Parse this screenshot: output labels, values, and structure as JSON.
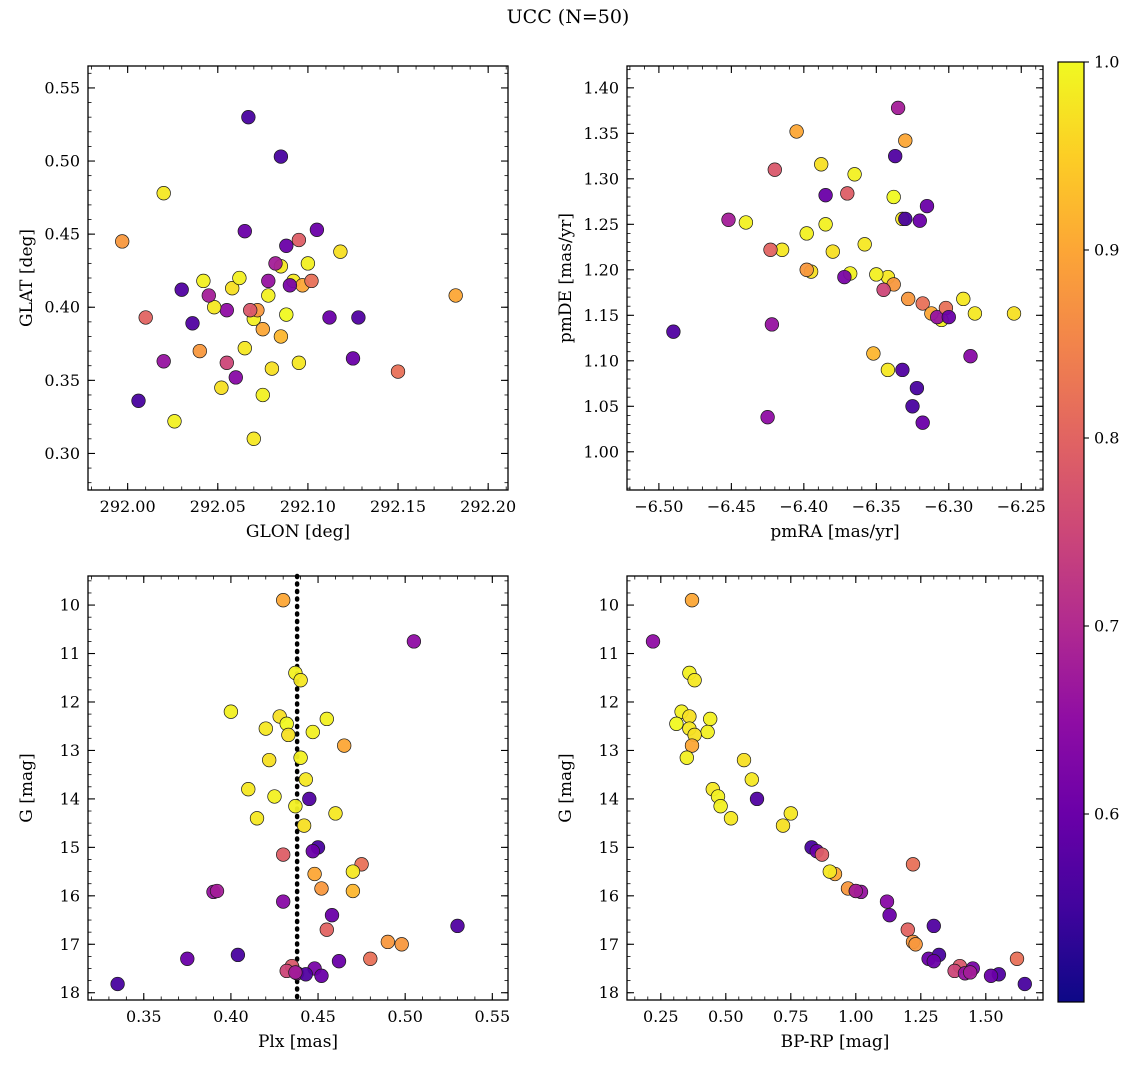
{
  "title": "UCC (N=50)",
  "colorbar": {
    "colormap": "plasma",
    "vmin": 0.5,
    "vmax": 1.0,
    "tick_values": [
      0.6,
      0.7,
      0.8,
      0.9,
      1.0
    ],
    "tick_labels": [
      "0.6",
      "0.7",
      "0.8",
      "0.9",
      "1.0"
    ]
  },
  "colormap_plasma_stops": [
    "#0d0887",
    "#41049d",
    "#6a00a8",
    "#8f0da4",
    "#b12a90",
    "#cc4778",
    "#e16462",
    "#f2844b",
    "#fca636",
    "#fcce25",
    "#f0f921"
  ],
  "chart_data": {
    "type": "scatter",
    "n_stars": 50,
    "legend": "none",
    "grid": false,
    "star_fields": [
      "glon",
      "glat",
      "pmra",
      "pmde",
      "plx",
      "g_mag",
      "bp_rp",
      "prob"
    ],
    "stars": [
      [
        292.075,
        0.385,
        -6.405,
        1.352,
        0.43,
        9.9,
        0.37,
        0.9
      ],
      [
        292.055,
        0.398,
        -6.425,
        1.038,
        0.505,
        10.75,
        0.22,
        0.65
      ],
      [
        292.078,
        0.408,
        -6.385,
        1.25,
        0.437,
        11.4,
        0.36,
        0.99
      ],
      [
        292.092,
        0.418,
        -6.358,
        1.228,
        0.44,
        11.55,
        0.38,
        0.98
      ],
      [
        292.042,
        0.418,
        -6.44,
        1.252,
        0.4,
        12.2,
        0.33,
        0.99
      ],
      [
        292.058,
        0.413,
        -6.395,
        1.198,
        0.428,
        12.3,
        0.36,
        0.97
      ],
      [
        292.07,
        0.392,
        -6.365,
        1.305,
        0.455,
        12.35,
        0.44,
        0.99
      ],
      [
        292.088,
        0.395,
        -6.338,
        1.28,
        0.432,
        12.45,
        0.31,
        1.0
      ],
      [
        292.065,
        0.372,
        -6.342,
        1.192,
        0.42,
        12.55,
        0.36,
        0.98
      ],
      [
        292.1,
        0.43,
        -6.35,
        1.195,
        0.447,
        12.62,
        0.43,
        0.99
      ],
      [
        292.08,
        0.358,
        -6.255,
        1.152,
        0.433,
        12.68,
        0.38,
        0.97
      ],
      [
        292.097,
        0.415,
        -6.33,
        1.342,
        0.465,
        12.9,
        0.37,
        0.9
      ],
      [
        292.075,
        0.34,
        -6.305,
        1.145,
        0.44,
        13.15,
        0.35,
        0.99
      ],
      [
        292.052,
        0.345,
        -6.38,
        1.22,
        0.422,
        13.2,
        0.57,
        0.97
      ],
      [
        292.07,
        0.31,
        -6.29,
        1.168,
        0.41,
        13.8,
        0.45,
        0.98
      ],
      [
        292.026,
        0.322,
        -6.398,
        1.24,
        0.425,
        13.95,
        0.47,
        0.99
      ],
      [
        292.036,
        0.389,
        -6.49,
        1.132,
        0.445,
        14.0,
        0.62,
        0.57
      ],
      [
        292.062,
        0.42,
        -6.368,
        1.196,
        0.437,
        14.15,
        0.48,
        0.99
      ],
      [
        292.085,
        0.428,
        -6.332,
        1.256,
        0.46,
        14.3,
        0.75,
        0.98
      ],
      [
        292.048,
        0.4,
        -6.415,
        1.222,
        0.415,
        14.4,
        0.52,
        0.98
      ],
      [
        292.118,
        0.438,
        -6.388,
        1.316,
        0.442,
        14.55,
        0.72,
        0.97
      ],
      [
        292.067,
        0.53,
        -6.322,
        1.07,
        0.45,
        15.0,
        0.83,
        0.56
      ],
      [
        292.105,
        0.453,
        -6.32,
        1.254,
        0.447,
        15.08,
        0.85,
        0.6
      ],
      [
        292.095,
        0.446,
        -6.37,
        1.284,
        0.43,
        15.15,
        0.87,
        0.79
      ],
      [
        292.15,
        0.356,
        -6.318,
        1.163,
        0.475,
        15.35,
        1.22,
        0.82
      ],
      [
        292.182,
        0.408,
        -6.312,
        1.152,
        0.448,
        15.55,
        0.92,
        0.9
      ],
      [
        291.997,
        0.445,
        -6.398,
        1.2,
        0.452,
        15.85,
        0.97,
        0.88
      ],
      [
        292.085,
        0.38,
        -6.352,
        1.108,
        0.47,
        15.9,
        1.0,
        0.92
      ],
      [
        292.02,
        0.363,
        -6.422,
        1.14,
        0.39,
        15.92,
        1.02,
        0.66
      ],
      [
        292.06,
        0.352,
        -6.285,
        1.105,
        0.43,
        16.12,
        1.12,
        0.64
      ],
      [
        292.128,
        0.393,
        -6.332,
        1.09,
        0.53,
        16.62,
        1.3,
        0.57
      ],
      [
        292.01,
        0.393,
        -6.423,
        1.222,
        0.455,
        16.7,
        1.2,
        0.8
      ],
      [
        292.04,
        0.37,
        -6.338,
        1.184,
        0.49,
        16.95,
        1.22,
        0.88
      ],
      [
        292.072,
        0.398,
        -6.328,
        1.168,
        0.498,
        17.0,
        1.23,
        0.88
      ],
      [
        292.006,
        0.336,
        -6.325,
        1.05,
        0.335,
        17.82,
        1.65,
        0.56
      ],
      [
        292.125,
        0.365,
        -6.318,
        1.032,
        0.375,
        17.3,
        1.28,
        0.6
      ],
      [
        292.085,
        0.503,
        -6.33,
        1.256,
        0.404,
        17.22,
        1.32,
        0.56
      ],
      [
        292.068,
        0.398,
        -6.42,
        1.31,
        0.435,
        17.45,
        1.4,
        0.78
      ],
      [
        292.09,
        0.415,
        -6.372,
        1.192,
        0.448,
        17.5,
        1.45,
        0.62
      ],
      [
        292.055,
        0.362,
        -6.345,
        1.178,
        0.432,
        17.55,
        1.38,
        0.75
      ],
      [
        292.078,
        0.418,
        -6.308,
        1.148,
        0.438,
        17.6,
        1.42,
        0.66
      ],
      [
        292.112,
        0.393,
        -6.385,
        1.282,
        0.462,
        17.35,
        1.3,
        0.6
      ],
      [
        292.102,
        0.418,
        -6.302,
        1.158,
        0.48,
        17.3,
        1.62,
        0.82
      ],
      [
        292.03,
        0.412,
        -6.337,
        1.325,
        0.443,
        17.62,
        1.55,
        0.57
      ],
      [
        292.088,
        0.442,
        -6.315,
        1.27,
        0.452,
        17.65,
        1.52,
        0.6
      ],
      [
        292.065,
        0.452,
        -6.3,
        1.148,
        0.458,
        16.4,
        1.13,
        0.6
      ],
      [
        292.045,
        0.408,
        -6.452,
        1.255,
        0.392,
        15.9,
        1.0,
        0.68
      ],
      [
        292.095,
        0.362,
        -6.342,
        1.09,
        0.47,
        15.5,
        0.9,
        0.98
      ],
      [
        292.02,
        0.478,
        -6.282,
        1.152,
        0.443,
        13.6,
        0.6,
        0.98
      ],
      [
        292.082,
        0.43,
        -6.335,
        1.378,
        0.437,
        17.58,
        1.44,
        0.68
      ]
    ],
    "panels": [
      {
        "id": "glat-vs-glon",
        "xkey": "glon",
        "ykey": "glat",
        "xlabel": "GLON [deg]",
        "ylabel": "GLAT [deg]",
        "xlim": [
          291.978,
          292.211
        ],
        "ylim": [
          0.275,
          0.565
        ],
        "invert_y": false,
        "xtick_values": [
          292.0,
          292.05,
          292.1,
          292.15,
          292.2
        ],
        "xtick_labels": [
          "292.00",
          "292.05",
          "292.10",
          "292.15",
          "292.20"
        ],
        "ytick_values": [
          0.3,
          0.35,
          0.4,
          0.45,
          0.5,
          0.55
        ],
        "ytick_labels": [
          "0.30",
          "0.35",
          "0.40",
          "0.45",
          "0.50",
          "0.55"
        ],
        "xminor": 0.01,
        "yminor": 0.01
      },
      {
        "id": "pmde-vs-pmra",
        "xkey": "pmra",
        "ykey": "pmde",
        "xlabel": "pmRA [mas/yr]",
        "ylabel": "pmDE [mas/yr]",
        "xlim": [
          -6.522,
          -6.235
        ],
        "ylim": [
          0.958,
          1.424
        ],
        "invert_y": false,
        "xtick_values": [
          -6.5,
          -6.45,
          -6.4,
          -6.35,
          -6.3,
          -6.25
        ],
        "xtick_labels": [
          "−6.50",
          "−6.45",
          "−6.40",
          "−6.35",
          "−6.30",
          "−6.25"
        ],
        "ytick_values": [
          1.0,
          1.05,
          1.1,
          1.15,
          1.2,
          1.25,
          1.3,
          1.35,
          1.4
        ],
        "ytick_labels": [
          "1.00",
          "1.05",
          "1.10",
          "1.15",
          "1.20",
          "1.25",
          "1.30",
          "1.35",
          "1.40"
        ],
        "xminor": 0.01,
        "yminor": 0.01
      },
      {
        "id": "g-vs-plx",
        "xkey": "plx",
        "ykey": "g_mag",
        "xlabel": "Plx [mas]",
        "ylabel": "G [mag]",
        "xlim": [
          0.318,
          0.559
        ],
        "ylim": [
          9.4,
          18.15
        ],
        "invert_y": true,
        "xtick_values": [
          0.35,
          0.4,
          0.45,
          0.5,
          0.55
        ],
        "xtick_labels": [
          "0.35",
          "0.40",
          "0.45",
          "0.50",
          "0.55"
        ],
        "ytick_values": [
          10,
          11,
          12,
          13,
          14,
          15,
          16,
          17,
          18
        ],
        "ytick_labels": [
          "10",
          "11",
          "12",
          "13",
          "14",
          "15",
          "16",
          "17",
          "18"
        ],
        "xminor": 0.01,
        "yminor": 0.25,
        "vline": {
          "x": 0.438,
          "style": "dotted",
          "color": "#000000"
        }
      },
      {
        "id": "g-vs-bprp",
        "xkey": "bp_rp",
        "ykey": "g_mag",
        "xlabel": "BP-RP [mag]",
        "ylabel": "G [mag]",
        "xlim": [
          0.12,
          1.72
        ],
        "ylim": [
          9.4,
          18.15
        ],
        "invert_y": true,
        "xtick_values": [
          0.25,
          0.5,
          0.75,
          1.0,
          1.25,
          1.5
        ],
        "xtick_labels": [
          "0.25",
          "0.50",
          "0.75",
          "1.00",
          "1.25",
          "1.50"
        ],
        "ytick_values": [
          10,
          11,
          12,
          13,
          14,
          15,
          16,
          17,
          18
        ],
        "ytick_labels": [
          "10",
          "11",
          "12",
          "13",
          "14",
          "15",
          "16",
          "17",
          "18"
        ],
        "xminor": 0.05,
        "yminor": 0.25
      }
    ]
  }
}
